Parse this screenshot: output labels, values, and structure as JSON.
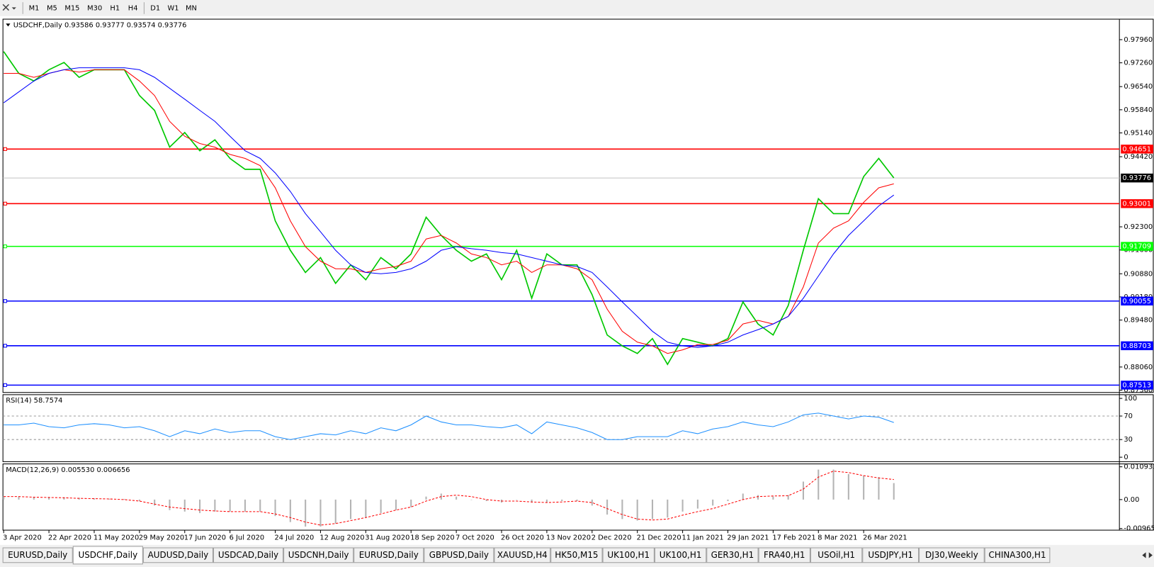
{
  "toolbar": {
    "timeframes": [
      "M1",
      "M5",
      "M15",
      "M30",
      "H1",
      "H4",
      "D1",
      "W1",
      "MN"
    ]
  },
  "chart_data": [
    {
      "type": "line",
      "title": "USDCHF,Daily 0.93586 0.93777 0.93574 0.93776",
      "categories": [
        "3 Apr 2020",
        null,
        null,
        "22 Apr 2020",
        null,
        null,
        "11 May 2020",
        null,
        null,
        "29 May 2020",
        null,
        null,
        "17 Jun 2020",
        null,
        null,
        "6 Jul 2020",
        null,
        null,
        "24 Jul 2020",
        null,
        null,
        "12 Aug 2020",
        null,
        null,
        "31 Aug 2020",
        null,
        null,
        "18 Sep 2020",
        null,
        null,
        "7 Oct 2020",
        null,
        null,
        "26 Oct 2020",
        null,
        null,
        "13 Nov 2020",
        null,
        null,
        "2 Dec 2020",
        null,
        null,
        "21 Dec 2020",
        null,
        null,
        "11 Jan 2021",
        null,
        null,
        "29 Jan 2021",
        null,
        null,
        "17 Feb 2021",
        null,
        null,
        "8 Mar 2021",
        null,
        null,
        "26 Mar 2021",
        null,
        null
      ],
      "series": [
        {
          "color": "#00c800",
          "values": [
            0.976,
            0.9694,
            0.9671,
            0.9705,
            0.9727,
            0.9682,
            0.9705,
            0.9705,
            0.9705,
            0.9627,
            0.9582,
            0.9471,
            0.9515,
            0.946,
            0.9493,
            0.9437,
            0.9404,
            0.9404,
            0.9248,
            0.9159,
            0.9092,
            0.9137,
            0.9059,
            0.9115,
            0.907,
            0.9137,
            0.9103,
            0.9148,
            0.9259,
            0.9204,
            0.9159,
            0.9126,
            0.9148,
            0.907,
            0.9159,
            0.9014,
            0.9148,
            0.9115,
            0.9115,
            0.9025,
            0.8903,
            0.887,
            0.8847,
            0.8892,
            0.8814,
            0.8892,
            0.8881,
            0.887,
            0.8892,
            0.9003,
            0.8936,
            0.8903,
            0.8992,
            0.9159,
            0.9315,
            0.927,
            0.927,
            0.9382,
            0.9437,
            0.9378
          ]
        },
        {
          "color": "#ff0000",
          "values": [
            0.9694,
            0.9694,
            0.9682,
            0.9694,
            0.9705,
            0.9698,
            0.9705,
            0.9705,
            0.9705,
            0.9671,
            0.9627,
            0.9549,
            0.9504,
            0.9482,
            0.9471,
            0.9449,
            0.9437,
            0.9415,
            0.9348,
            0.9248,
            0.917,
            0.9126,
            0.9103,
            0.9103,
            0.9092,
            0.9103,
            0.911,
            0.9126,
            0.9193,
            0.9204,
            0.9181,
            0.9148,
            0.9137,
            0.9115,
            0.9126,
            0.9092,
            0.9115,
            0.9115,
            0.9103,
            0.907,
            0.8981,
            0.8914,
            0.8881,
            0.887,
            0.8847,
            0.8858,
            0.8874,
            0.8874,
            0.8887,
            0.8936,
            0.8947,
            0.8936,
            0.8959,
            0.9048,
            0.9181,
            0.9226,
            0.9248,
            0.9304,
            0.9348,
            0.936
          ]
        },
        {
          "color": "#0000ff",
          "values": [
            0.9605,
            0.9638,
            0.9671,
            0.9694,
            0.9705,
            0.9711,
            0.9711,
            0.9711,
            0.9711,
            0.9705,
            0.9682,
            0.9649,
            0.9616,
            0.9582,
            0.9549,
            0.9504,
            0.946,
            0.9437,
            0.9393,
            0.9337,
            0.927,
            0.9215,
            0.9159,
            0.9115,
            0.9092,
            0.9088,
            0.9092,
            0.9103,
            0.9126,
            0.9159,
            0.917,
            0.9164,
            0.9159,
            0.9152,
            0.9148,
            0.9137,
            0.9126,
            0.9115,
            0.911,
            0.9092,
            0.9048,
            0.9003,
            0.8959,
            0.8914,
            0.8881,
            0.887,
            0.8865,
            0.887,
            0.8881,
            0.8903,
            0.8919,
            0.8936,
            0.8959,
            0.9014,
            0.9081,
            0.9148,
            0.9204,
            0.9248,
            0.9293,
            0.9326
          ]
        }
      ],
      "ylim": [
        0.8729,
        0.9858
      ],
      "yticks": [
        {
          "value": 0.9796,
          "label": "0.97960"
        },
        {
          "value": 0.9726,
          "label": "0.97260"
        },
        {
          "value": 0.9654,
          "label": "0.96540"
        },
        {
          "value": 0.9584,
          "label": "0.95840"
        },
        {
          "value": 0.9514,
          "label": "0.95140"
        },
        {
          "value": 0.9442,
          "label": "0.94420"
        },
        {
          "value": 0.923,
          "label": "0.92300"
        },
        {
          "value": 0.916,
          "label": "0.91600"
        },
        {
          "value": 0.9088,
          "label": "0.90880"
        },
        {
          "value": 0.9018,
          "label": "0.90180"
        },
        {
          "value": 0.8948,
          "label": "0.89480"
        },
        {
          "value": 0.8806,
          "label": "0.88060"
        },
        {
          "value": 0.8736,
          "label": "0.87360"
        }
      ],
      "levels": [
        {
          "value": 0.94651,
          "color": "#ff0000"
        },
        {
          "value": 0.93001,
          "color": "#ff0000"
        },
        {
          "value": 0.91709,
          "color": "#00ff00"
        },
        {
          "value": 0.90055,
          "color": "#0000ff"
        },
        {
          "value": 0.88703,
          "color": "#0000ff"
        },
        {
          "value": 0.87513,
          "color": "#0000ff"
        }
      ],
      "current": 0.93776
    },
    {
      "type": "line",
      "title": "RSI(14) 58.7574",
      "series": [
        {
          "color": "#1e90ff",
          "values": [
            55,
            55,
            58,
            52,
            50,
            55,
            57,
            55,
            50,
            52,
            45,
            35,
            45,
            40,
            48,
            42,
            45,
            45,
            35,
            30,
            35,
            40,
            38,
            45,
            40,
            50,
            45,
            55,
            70,
            60,
            55,
            55,
            52,
            50,
            55,
            40,
            60,
            55,
            50,
            42,
            30,
            30,
            35,
            35,
            35,
            45,
            40,
            48,
            52,
            60,
            55,
            52,
            60,
            72,
            75,
            70,
            65,
            70,
            68,
            59
          ]
        }
      ],
      "ylim": [
        -7.6,
        106.3
      ],
      "yticks": [
        100,
        70,
        30,
        0
      ],
      "levels": [
        70,
        30
      ]
    },
    {
      "type": "bar",
      "title": "MACD(12,26,9) 0.005530 0.006656",
      "series": [
        {
          "type": "bar",
          "color": "#b4b4b4",
          "values": [
            0.0012,
            0.001,
            0.0008,
            0.0009,
            0.0008,
            0.0006,
            0.0004,
            0.0003,
            0.0002,
            -0.0005,
            -0.002,
            -0.0035,
            -0.004,
            -0.0045,
            -0.004,
            -0.004,
            -0.004,
            -0.004,
            -0.0055,
            -0.0075,
            -0.009,
            -0.009,
            -0.008,
            -0.0065,
            -0.006,
            -0.0045,
            -0.0035,
            -0.0025,
            0.001,
            0.002,
            0.001,
            0,
            -0.0005,
            -0.001,
            0,
            -0.001,
            -0.001,
            -0.0005,
            -0.0005,
            -0.002,
            -0.005,
            -0.0065,
            -0.007,
            -0.0065,
            -0.006,
            -0.004,
            -0.003,
            -0.002,
            -0.0005,
            0.002,
            0.0015,
            0.001,
            0.0015,
            0.006,
            0.01,
            0.01,
            0.0085,
            0.008,
            0.0075,
            0.0055
          ]
        },
        {
          "type": "line",
          "color": "#ff0000",
          "dashed": true,
          "values": [
            0.001,
            0.001,
            0.0008,
            0.0007,
            0.0006,
            0.0004,
            0.0003,
            0.0002,
            0,
            -0.0005,
            -0.0015,
            -0.0025,
            -0.003,
            -0.0035,
            -0.0038,
            -0.004,
            -0.004,
            -0.004,
            -0.0048,
            -0.006,
            -0.0075,
            -0.0085,
            -0.008,
            -0.007,
            -0.006,
            -0.0048,
            -0.0035,
            -0.0025,
            -0.0005,
            0.001,
            0.0015,
            0.001,
            0,
            -0.0005,
            -0.0005,
            -0.0008,
            -0.001,
            -0.0008,
            -0.0005,
            -0.001,
            -0.003,
            -0.005,
            -0.0065,
            -0.0068,
            -0.0065,
            -0.0052,
            -0.004,
            -0.003,
            -0.0015,
            0,
            0.001,
            0.0012,
            0.0013,
            0.0035,
            0.0075,
            0.0095,
            0.009,
            0.008,
            0.0072,
            0.0067
          ]
        }
      ],
      "ylim": [
        -0.0102,
        0.0119
      ],
      "yticks": [
        0.010933,
        {
          "value": 0,
          "label": "0.00"
        },
        -0.009653
      ]
    }
  ],
  "tabs": [
    "EURUSD,Daily",
    "USDCHF,Daily",
    "AUDUSD,Daily",
    "USDCAD,Daily",
    "USDCNH,Daily",
    "EURUSD,Daily",
    "GBPUSD,Daily",
    "XAUUSD,H4",
    "HK50,M15",
    "UK100,H1",
    "UK100,H1",
    "GER30,H1",
    "FRA40,H1",
    "USOil,H1",
    "USDJPY,H1",
    "DJ30,Weekly",
    "CHINA300,H1"
  ],
  "active_tab": 1
}
